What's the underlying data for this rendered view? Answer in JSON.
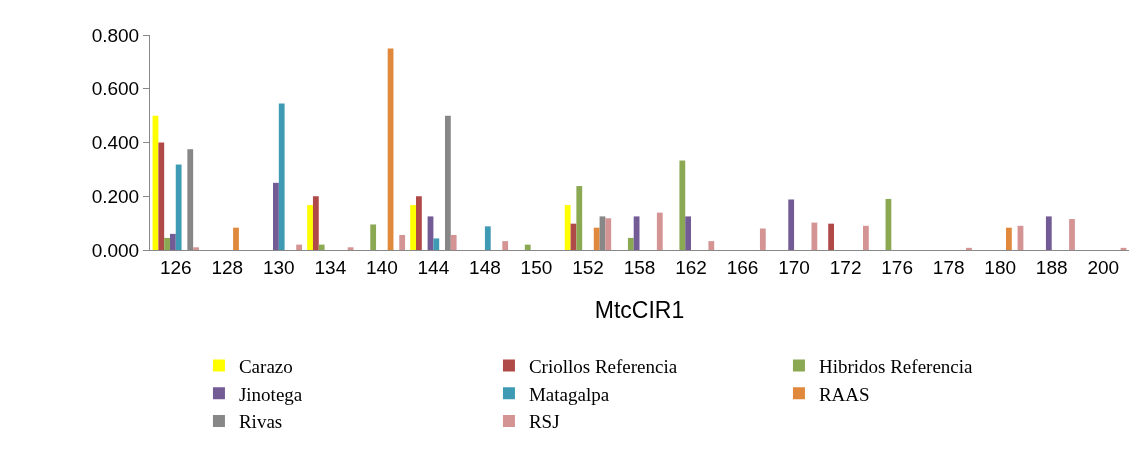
{
  "chart_data": {
    "type": "bar",
    "xlabel": "MtcCIR1",
    "categories": [
      "126",
      "128",
      "130",
      "134",
      "140",
      "144",
      "148",
      "150",
      "152",
      "158",
      "162",
      "166",
      "170",
      "172",
      "176",
      "178",
      "180",
      "188",
      "200"
    ],
    "series": [
      {
        "name": "Carazo",
        "color": "#ffff00",
        "values": [
          0.5,
          null,
          null,
          0.167,
          null,
          0.167,
          null,
          null,
          0.167,
          null,
          null,
          null,
          null,
          null,
          null,
          null,
          null,
          null,
          null
        ]
      },
      {
        "name": "Criollos Referencia",
        "color": "#b04a48",
        "values": [
          0.4,
          null,
          null,
          0.2,
          null,
          0.2,
          null,
          null,
          0.098,
          null,
          null,
          null,
          null,
          0.098,
          null,
          null,
          null,
          null,
          null
        ]
      },
      {
        "name": "Hibridos Referencia",
        "color": "#8ba852",
        "values": [
          0.045,
          null,
          null,
          0.02,
          0.095,
          null,
          null,
          0.02,
          0.238,
          0.045,
          0.333,
          null,
          null,
          null,
          0.19,
          null,
          null,
          null,
          null
        ]
      },
      {
        "name": "Jinotega",
        "color": "#735b96",
        "values": [
          0.06,
          null,
          0.25,
          null,
          null,
          0.125,
          null,
          null,
          null,
          0.125,
          0.125,
          null,
          0.188,
          null,
          null,
          null,
          null,
          0.125,
          null
        ]
      },
      {
        "name": "Matagalpa",
        "color": "#3f9bb3",
        "values": [
          0.318,
          null,
          0.545,
          null,
          null,
          0.043,
          0.088,
          null,
          null,
          null,
          null,
          null,
          null,
          null,
          null,
          null,
          null,
          null,
          null
        ]
      },
      {
        "name": "RAAS",
        "color": "#e0893c",
        "values": [
          null,
          0.083,
          null,
          null,
          0.75,
          null,
          null,
          null,
          0.083,
          null,
          null,
          null,
          null,
          null,
          null,
          null,
          0.083,
          null,
          null
        ]
      },
      {
        "name": "Rivas",
        "color": "#878787",
        "values": [
          0.375,
          null,
          null,
          null,
          null,
          0.5,
          null,
          null,
          0.125,
          null,
          null,
          null,
          null,
          null,
          null,
          null,
          null,
          null,
          null
        ]
      },
      {
        "name": "RSJ",
        "color": "#d49494",
        "values": [
          0.01,
          null,
          0.02,
          0.01,
          0.056,
          0.056,
          0.033,
          null,
          0.118,
          0.139,
          0.033,
          0.08,
          0.102,
          0.09,
          null,
          0.008,
          0.09,
          0.115,
          0.008
        ]
      }
    ],
    "ylim": [
      0,
      0.8
    ],
    "yticks": [
      {
        "value": 0,
        "label": "0.000"
      },
      {
        "value": 0.2,
        "label": "0.200"
      },
      {
        "value": 0.4,
        "label": "0.400"
      },
      {
        "value": 0.6,
        "label": "0.600"
      },
      {
        "value": 0.8,
        "label": "0.800"
      }
    ],
    "grid": false,
    "legend": "bottom"
  }
}
